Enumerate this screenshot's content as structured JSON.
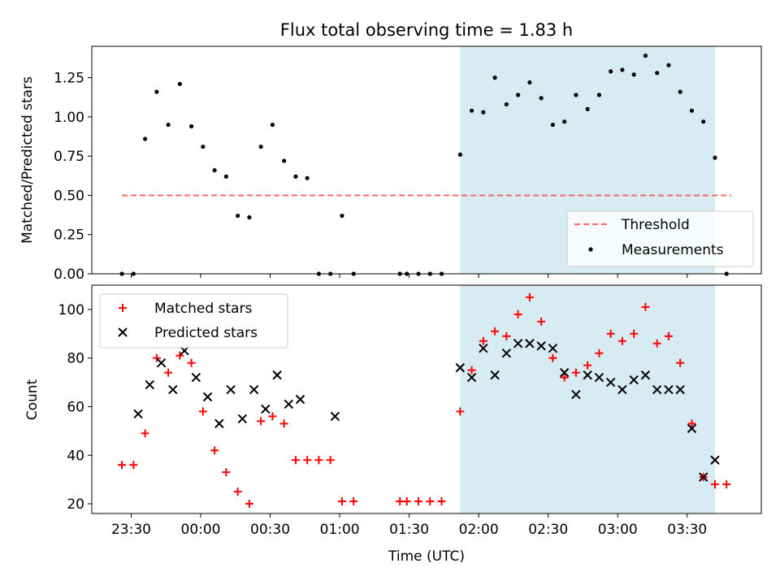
{
  "figure": {
    "title": "Flux total observing time = 1.83 h",
    "xlabel": "Time (UTC)"
  },
  "chart_data": [
    {
      "type": "scatter",
      "panel": "top",
      "ylabel": "Matched/Predicted stars",
      "ylim": [
        0,
        1.45
      ],
      "yticks": [
        0.0,
        0.25,
        0.5,
        0.75,
        1.0,
        1.25
      ],
      "ytick_labels": [
        "0.00",
        "0.25",
        "0.50",
        "0.75",
        "1.00",
        "1.25"
      ],
      "xlim": [
        "23:13",
        "04:02"
      ],
      "xticks": [
        "23:30",
        "00:00",
        "00:30",
        "01:00",
        "01:30",
        "02:00",
        "02:30",
        "03:00",
        "03:30"
      ],
      "grid": false,
      "legend_position": "lower-right",
      "shaded_interval": {
        "start": "01:52",
        "end": "03:42",
        "color": "#add8e6"
      },
      "threshold": {
        "name": "Threshold",
        "value": 0.5,
        "x_start": "23:26",
        "x_end": "03:49",
        "color": "#ff6666"
      },
      "series": [
        {
          "name": "Measurements",
          "color": "#000000",
          "x": [
            "23:26",
            "23:31",
            "23:36",
            "23:41",
            "23:46",
            "23:51",
            "23:56",
            "00:01",
            "00:06",
            "00:11",
            "00:16",
            "00:21",
            "00:26",
            "00:31",
            "00:36",
            "00:41",
            "00:46",
            "00:51",
            "00:56",
            "01:01",
            "01:06",
            "01:26",
            "01:29",
            "01:34",
            "01:39",
            "01:44",
            "01:52",
            "01:57",
            "02:02",
            "02:07",
            "02:12",
            "02:17",
            "02:22",
            "02:27",
            "02:32",
            "02:37",
            "02:42",
            "02:47",
            "02:52",
            "02:57",
            "03:02",
            "03:07",
            "03:12",
            "03:17",
            "03:22",
            "03:27",
            "03:32",
            "03:37",
            "03:42",
            "03:47"
          ],
          "y": [
            0.0,
            0.0,
            0.86,
            1.16,
            0.95,
            1.21,
            0.94,
            0.81,
            0.66,
            0.62,
            0.37,
            0.36,
            0.81,
            0.95,
            0.72,
            0.62,
            0.61,
            0.0,
            0.0,
            0.37,
            0.0,
            0.0,
            0.0,
            0.0,
            0.0,
            0.0,
            0.76,
            1.04,
            1.03,
            1.25,
            1.08,
            1.14,
            1.22,
            1.12,
            0.95,
            0.97,
            1.14,
            1.05,
            1.14,
            1.29,
            1.3,
            1.27,
            1.39,
            1.28,
            1.33,
            1.16,
            1.04,
            0.97,
            0.74,
            0.0
          ]
        }
      ]
    },
    {
      "type": "scatter",
      "panel": "bottom",
      "ylabel": "Count",
      "ylim": [
        16,
        110
      ],
      "yticks": [
        20,
        40,
        60,
        80,
        100
      ],
      "ytick_labels": [
        "20",
        "40",
        "60",
        "80",
        "100"
      ],
      "xlim": [
        "23:13",
        "04:02"
      ],
      "xticks": [
        "23:30",
        "00:00",
        "00:30",
        "01:00",
        "01:30",
        "02:00",
        "02:30",
        "03:00",
        "03:30"
      ],
      "xtick_labels": [
        "23:30",
        "00:00",
        "00:30",
        "01:00",
        "01:30",
        "02:00",
        "02:30",
        "03:00",
        "03:30"
      ],
      "grid": false,
      "legend_position": "upper-left",
      "shaded_interval": {
        "start": "01:52",
        "end": "03:42",
        "color": "#add8e6"
      },
      "series": [
        {
          "name": "Matched stars",
          "marker": "plus",
          "color": "#ff0000",
          "x": [
            "23:26",
            "23:31",
            "23:36",
            "23:41",
            "23:46",
            "23:51",
            "23:56",
            "00:01",
            "00:06",
            "00:11",
            "00:16",
            "00:21",
            "00:26",
            "00:31",
            "00:36",
            "00:41",
            "00:46",
            "00:51",
            "00:56",
            "01:01",
            "01:06",
            "01:26",
            "01:29",
            "01:34",
            "01:39",
            "01:44",
            "01:52",
            "01:57",
            "02:02",
            "02:07",
            "02:12",
            "02:17",
            "02:22",
            "02:27",
            "02:32",
            "02:37",
            "02:42",
            "02:47",
            "02:52",
            "02:57",
            "03:02",
            "03:07",
            "03:12",
            "03:17",
            "03:22",
            "03:27",
            "03:32",
            "03:37",
            "03:42",
            "03:47"
          ],
          "y": [
            36,
            36,
            49,
            80,
            74,
            81,
            78,
            58,
            42,
            33,
            25,
            20,
            54,
            56,
            53,
            38,
            38,
            38,
            38,
            21,
            21,
            21,
            21,
            21,
            21,
            21,
            58,
            75,
            87,
            91,
            89,
            98,
            105,
            95,
            80,
            72,
            74,
            77,
            82,
            90,
            87,
            90,
            101,
            86,
            89,
            78,
            53,
            31,
            28,
            28
          ]
        },
        {
          "name": "Predicted stars",
          "marker": "x",
          "color": "#000000",
          "x": [
            "23:33",
            "23:38",
            "23:43",
            "23:48",
            "23:53",
            "23:58",
            "00:03",
            "00:08",
            "00:13",
            "00:18",
            "00:23",
            "00:28",
            "00:33",
            "00:38",
            "00:43",
            "00:58",
            "01:52",
            "01:57",
            "02:02",
            "02:07",
            "02:12",
            "02:17",
            "02:22",
            "02:27",
            "02:32",
            "02:37",
            "02:42",
            "02:47",
            "02:52",
            "02:57",
            "03:02",
            "03:07",
            "03:12",
            "03:17",
            "03:22",
            "03:27",
            "03:32",
            "03:37",
            "03:42"
          ],
          "y": [
            57,
            69,
            78,
            67,
            83,
            72,
            64,
            53,
            67,
            55,
            67,
            59,
            73,
            61,
            63,
            56,
            76,
            72,
            84,
            73,
            82,
            86,
            86,
            85,
            84,
            74,
            65,
            73,
            72,
            70,
            67,
            71,
            73,
            67,
            67,
            67,
            51,
            31,
            38
          ]
        }
      ]
    }
  ]
}
